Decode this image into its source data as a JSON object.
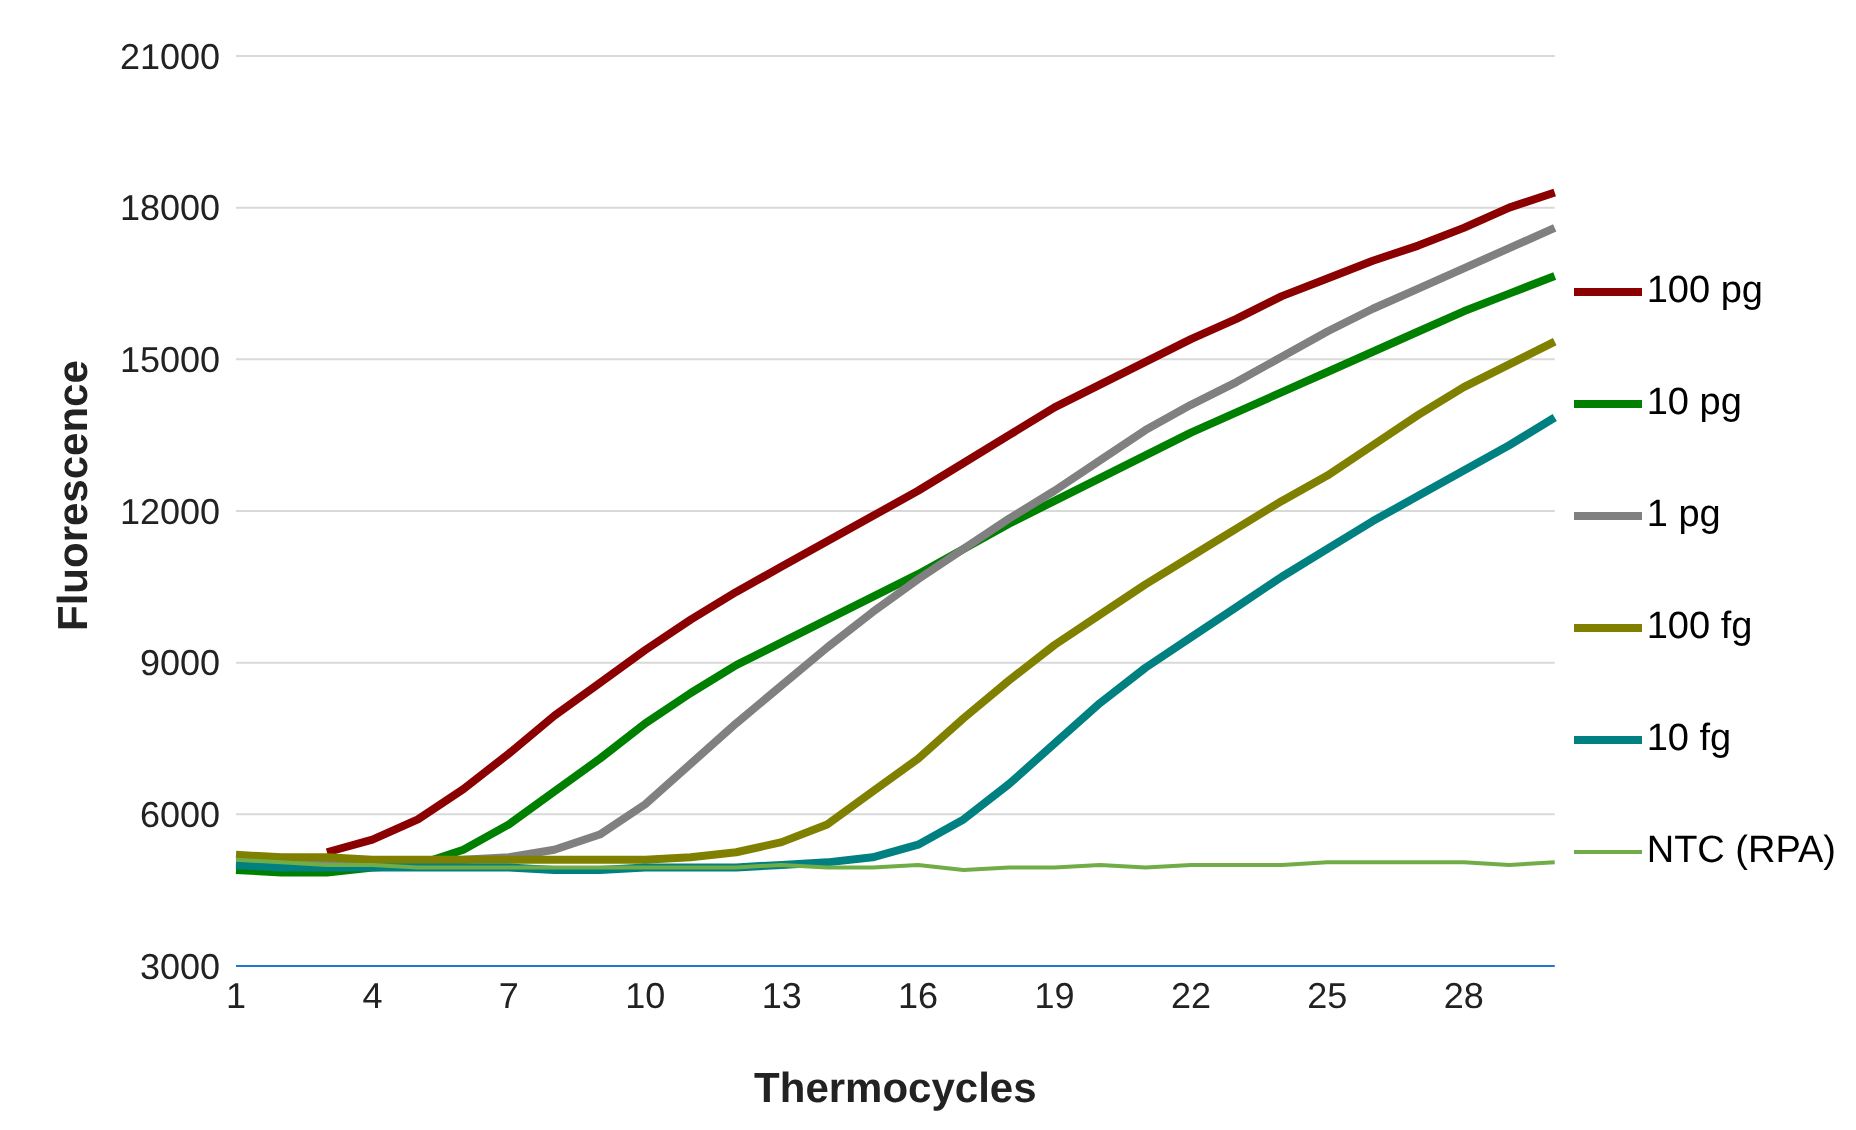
{
  "chart_data": {
    "type": "line",
    "xlabel": "Thermocycles",
    "ylabel": "Fluorescence",
    "categories": [
      "1",
      null,
      null,
      "4",
      null,
      null,
      "7",
      null,
      null,
      "10",
      null,
      null,
      "13",
      null,
      null,
      "16",
      null,
      null,
      "19",
      null,
      null,
      "22",
      null,
      null,
      "25",
      null,
      null,
      "28",
      null,
      null
    ],
    "ylim": [
      3000,
      21000
    ],
    "yticks": [
      3000,
      6000,
      9000,
      12000,
      15000,
      18000,
      21000
    ],
    "grid": "y",
    "legend": "right",
    "marker": "none",
    "line_style": "solid",
    "series": [
      {
        "name": "100 pg",
        "color": "#8b0000",
        "values": [
          null,
          null,
          5250,
          5500,
          5900,
          6500,
          7200,
          7950,
          8600,
          9250,
          9850,
          10400,
          10900,
          11400,
          11900,
          12400,
          12950,
          13500,
          14050,
          14500,
          14950,
          15400,
          15800,
          16250,
          16600,
          16950,
          17250,
          17600,
          18000,
          18300
        ]
      },
      {
        "name": "10 pg",
        "color": "#008000",
        "values": [
          4900,
          4850,
          4850,
          4950,
          5000,
          5300,
          5800,
          6450,
          7100,
          7800,
          8400,
          8950,
          9400,
          9850,
          10300,
          10750,
          11250,
          11750,
          12200,
          12650,
          13100,
          13550,
          13950,
          14350,
          14750,
          15150,
          15550,
          15950,
          16300,
          16650
        ]
      },
      {
        "name": "1 pg",
        "color": "#808080",
        "values": [
          5050,
          5000,
          5000,
          5000,
          5050,
          5100,
          5150,
          5300,
          5600,
          6200,
          7000,
          7800,
          8550,
          9300,
          10000,
          10650,
          11250,
          11850,
          12400,
          13000,
          13600,
          14100,
          14550,
          15050,
          15550,
          16000,
          16400,
          16800,
          17200,
          17600
        ]
      },
      {
        "name": "100 fg",
        "color": "#808000",
        "values": [
          5200,
          5150,
          5150,
          5100,
          5100,
          5100,
          5100,
          5100,
          5100,
          5100,
          5150,
          5250,
          5450,
          5800,
          6450,
          7100,
          7900,
          8650,
          9350,
          9950,
          10550,
          11100,
          11650,
          12200,
          12700,
          13300,
          13900,
          14450,
          14900,
          15350
        ]
      },
      {
        "name": "10 fg",
        "color": "#008080",
        "values": [
          5000,
          4950,
          4950,
          4950,
          4950,
          4950,
          4950,
          4900,
          4900,
          4950,
          4950,
          4950,
          5000,
          5050,
          5150,
          5400,
          5900,
          6600,
          7400,
          8200,
          8900,
          9500,
          10100,
          10700,
          11250,
          11800,
          12300,
          12800,
          13300,
          13850
        ]
      },
      {
        "name": "NTC (RPA)",
        "color": "#70ad47",
        "values": [
          5100,
          5050,
          5000,
          5000,
          4950,
          4950,
          4950,
          4950,
          4950,
          4950,
          4950,
          4950,
          5000,
          4950,
          4950,
          5000,
          4900,
          4950,
          4950,
          5000,
          4950,
          5000,
          5000,
          5000,
          5050,
          5050,
          5050,
          5050,
          5000,
          5050
        ]
      }
    ]
  }
}
